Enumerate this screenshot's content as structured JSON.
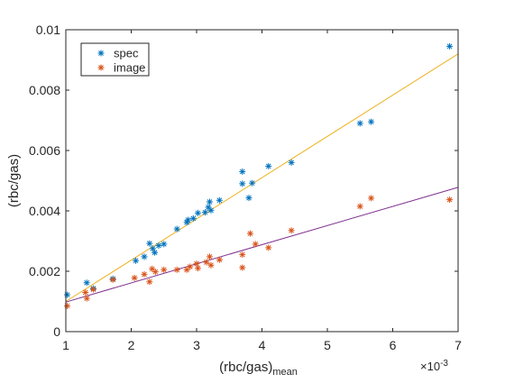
{
  "chart_data": {
    "type": "scatter",
    "title": "",
    "xlabel": "(rbc/gas)",
    "xlabel_subscript": "mean",
    "ylabel": "(rbc/gas)",
    "x_exponent": "×10",
    "x_exponent_power": "-3",
    "xlim": [
      0.001,
      0.007
    ],
    "ylim": [
      0,
      0.01
    ],
    "x_ticks": [
      0.001,
      0.002,
      0.003,
      0.004,
      0.005,
      0.006,
      0.007
    ],
    "x_tick_labels": [
      "1",
      "2",
      "3",
      "4",
      "5",
      "6",
      "7"
    ],
    "y_ticks": [
      0,
      0.002,
      0.004,
      0.006,
      0.008,
      0.01
    ],
    "y_tick_labels": [
      "0",
      "0.002",
      "0.004",
      "0.006",
      "0.008",
      "0.01"
    ],
    "grid": false,
    "legend_position": "top-left",
    "series": [
      {
        "name": "spec",
        "color": "#0072BD",
        "marker": "asterisk",
        "points": [
          [
            0.00102,
            0.00122
          ],
          [
            0.00132,
            0.00162
          ],
          [
            0.00142,
            0.00143
          ],
          [
            0.00172,
            0.00175
          ],
          [
            0.00207,
            0.00235
          ],
          [
            0.0022,
            0.00248
          ],
          [
            0.00228,
            0.00292
          ],
          [
            0.00233,
            0.00275
          ],
          [
            0.00236,
            0.00262
          ],
          [
            0.00242,
            0.00285
          ],
          [
            0.0025,
            0.0029
          ],
          [
            0.0027,
            0.0034
          ],
          [
            0.00285,
            0.00362
          ],
          [
            0.00287,
            0.0037
          ],
          [
            0.00295,
            0.00375
          ],
          [
            0.00302,
            0.00393
          ],
          [
            0.00313,
            0.00395
          ],
          [
            0.00318,
            0.00412
          ],
          [
            0.0032,
            0.0043
          ],
          [
            0.00322,
            0.00402
          ],
          [
            0.00335,
            0.00435
          ],
          [
            0.0037,
            0.0053
          ],
          [
            0.0037,
            0.0049
          ],
          [
            0.0038,
            0.00443
          ],
          [
            0.00385,
            0.00492
          ],
          [
            0.0041,
            0.00548
          ],
          [
            0.00445,
            0.0056
          ],
          [
            0.0055,
            0.0069
          ],
          [
            0.00567,
            0.00695
          ],
          [
            0.00687,
            0.00945
          ]
        ]
      },
      {
        "name": "image",
        "color": "#D95319",
        "marker": "asterisk",
        "points": [
          [
            0.00102,
            0.00085
          ],
          [
            0.0013,
            0.0013
          ],
          [
            0.00132,
            0.0011
          ],
          [
            0.00142,
            0.0014
          ],
          [
            0.00172,
            0.00172
          ],
          [
            0.00205,
            0.00178
          ],
          [
            0.0022,
            0.0019
          ],
          [
            0.00228,
            0.00165
          ],
          [
            0.00232,
            0.00208
          ],
          [
            0.00237,
            0.00198
          ],
          [
            0.0025,
            0.00205
          ],
          [
            0.0027,
            0.00205
          ],
          [
            0.00285,
            0.00205
          ],
          [
            0.0029,
            0.00215
          ],
          [
            0.003,
            0.00225
          ],
          [
            0.00302,
            0.0021
          ],
          [
            0.00315,
            0.0023
          ],
          [
            0.0032,
            0.00248
          ],
          [
            0.00322,
            0.0022
          ],
          [
            0.00335,
            0.00238
          ],
          [
            0.0037,
            0.00255
          ],
          [
            0.0037,
            0.00212
          ],
          [
            0.00382,
            0.00325
          ],
          [
            0.0039,
            0.0029
          ],
          [
            0.0041,
            0.00278
          ],
          [
            0.00445,
            0.00335
          ],
          [
            0.0055,
            0.00415
          ],
          [
            0.00567,
            0.00442
          ],
          [
            0.00687,
            0.00437
          ]
        ]
      }
    ],
    "fit_lines": [
      {
        "color": "#EDB120",
        "x": [
          0.001,
          0.007
        ],
        "y": [
          0.001,
          0.0092
        ]
      },
      {
        "color": "#7E2F8E",
        "x": [
          0.001,
          0.007
        ],
        "y": [
          0.00098,
          0.00478
        ]
      }
    ]
  }
}
